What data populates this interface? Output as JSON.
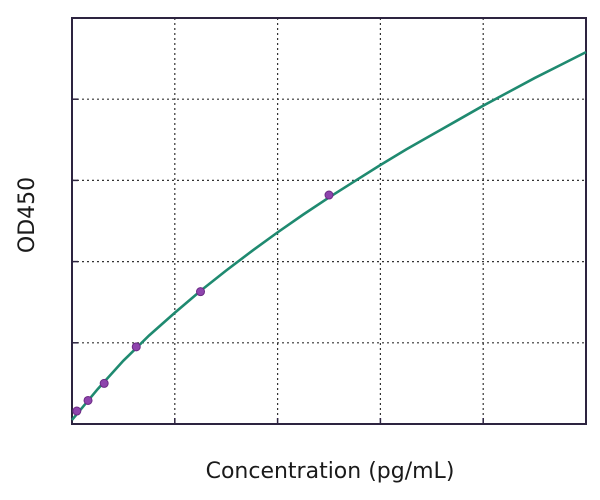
{
  "chart_data": {
    "type": "line",
    "title": "",
    "xlabel": "Concentration (pg/mL)",
    "ylabel": "OD450",
    "xlim": [
      0,
      5
    ],
    "ylim": [
      0,
      5
    ],
    "grid": true,
    "tick_labels_shown": false,
    "series": [
      {
        "kind": "points",
        "x": [
          0.047,
          0.156,
          0.313,
          0.625,
          1.25,
          2.5
        ],
        "y": [
          0.16,
          0.29,
          0.5,
          0.95,
          1.63,
          2.82
        ]
      },
      {
        "kind": "fitted-curve",
        "x": [
          0,
          0.25,
          0.5,
          0.75,
          1,
          1.25,
          1.5,
          1.75,
          2,
          2.25,
          2.5,
          2.75,
          3,
          3.25,
          3.5,
          3.75,
          4,
          4.25,
          4.5,
          4.75,
          5
        ],
        "y": [
          0.05,
          0.43,
          0.78,
          1.09,
          1.37,
          1.64,
          1.89,
          2.13,
          2.36,
          2.58,
          2.79,
          2.99,
          3.19,
          3.38,
          3.56,
          3.74,
          3.92,
          4.09,
          4.26,
          4.42,
          4.58
        ]
      }
    ],
    "colors": {
      "curve": "#1f8a70",
      "points": "#8e44ad",
      "frame": "#2d2440"
    }
  }
}
